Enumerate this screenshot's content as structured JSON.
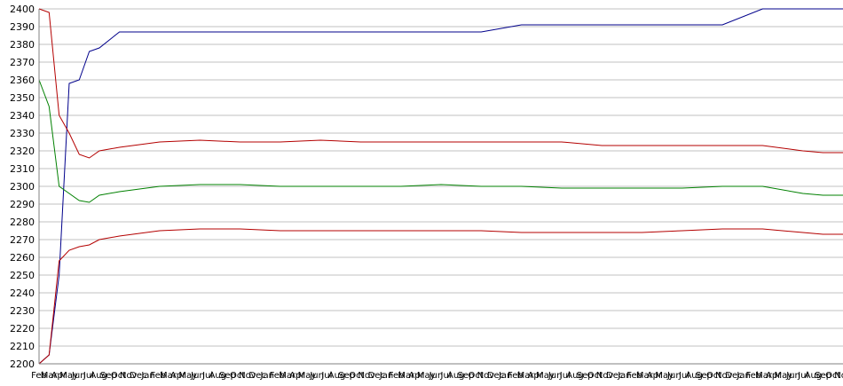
{
  "chart_data": {
    "type": "line",
    "title": "",
    "xlabel": "",
    "ylabel": "",
    "ylim": [
      2200,
      2400
    ],
    "y_ticks": [
      2200,
      2210,
      2220,
      2230,
      2240,
      2250,
      2260,
      2270,
      2280,
      2290,
      2300,
      2310,
      2320,
      2330,
      2340,
      2350,
      2360,
      2370,
      2380,
      2390,
      2400
    ],
    "grid": true,
    "legend": "none",
    "x_tick_labels": [
      "Feb",
      "Mar",
      "Apr",
      "May",
      "Jun",
      "Jul",
      "Aug",
      "Sep",
      "Oct",
      "Nov",
      "Dec",
      "Jan",
      "Feb",
      "Mar",
      "Apr",
      "May",
      "Jun",
      "Jul",
      "Aug",
      "Sep",
      "Oct",
      "Nov",
      "Dec",
      "Jan",
      "Feb",
      "Mar",
      "Apr",
      "May",
      "Jun",
      "Jul",
      "Aug",
      "Sep",
      "Oct",
      "Nov",
      "Dec",
      "Jan",
      "Feb",
      "Mar",
      "Apr",
      "May",
      "Jun",
      "Jul",
      "Aug",
      "Sep",
      "Oct",
      "Nov",
      "Dec",
      "Jan",
      "Feb",
      "Mar",
      "Apr",
      "May",
      "Jun",
      "Jul",
      "Aug",
      "Sep",
      "Oct",
      "Nov",
      "Dec",
      "Jan",
      "Feb",
      "Mar",
      "Apr",
      "May",
      "Jun",
      "Jul",
      "Aug",
      "Sep",
      "Oct",
      "Nov",
      "Dec",
      "Jan",
      "Feb",
      "Mar",
      "Apr",
      "May",
      "Jun",
      "Jul",
      "Aug",
      "Sep",
      "Oct",
      "Nov"
    ],
    "x_month_index": [
      0,
      1,
      2,
      3,
      4,
      5,
      6,
      8,
      12,
      16,
      20,
      24,
      28,
      32,
      36,
      40,
      44,
      48,
      52,
      56,
      60,
      64,
      68,
      72,
      76,
      78,
      80
    ],
    "series": [
      {
        "color": "#00008b",
        "values": [
          2200,
          2205,
          2250,
          2358,
          2360,
          2376,
          2378,
          2387,
          2387,
          2387,
          2387,
          2387,
          2387,
          2387,
          2387,
          2387,
          2387,
          2391,
          2391,
          2391,
          2391,
          2391,
          2391,
          2400,
          2400,
          2400,
          2400
        ]
      },
      {
        "color": "#b40000",
        "values": [
          2400,
          2398,
          2340,
          2330,
          2318,
          2316,
          2320,
          2322,
          2325,
          2326,
          2325,
          2325,
          2326,
          2325,
          2325,
          2325,
          2325,
          2325,
          2325,
          2323,
          2323,
          2323,
          2323,
          2323,
          2320,
          2319,
          2319
        ]
      },
      {
        "color": "#008000",
        "values": [
          2360,
          2345,
          2300,
          2296,
          2292,
          2291,
          2295,
          2297,
          2300,
          2301,
          2301,
          2300,
          2300,
          2300,
          2300,
          2301,
          2300,
          2300,
          2299,
          2299,
          2299,
          2299,
          2300,
          2300,
          2296,
          2295,
          2295
        ]
      },
      {
        "color": "#b40000",
        "values": [
          2200,
          2205,
          2258,
          2264,
          2266,
          2267,
          2270,
          2272,
          2275,
          2276,
          2276,
          2275,
          2275,
          2275,
          2275,
          2275,
          2275,
          2274,
          2274,
          2274,
          2274,
          2275,
          2276,
          2276,
          2274,
          2273,
          2273
        ]
      }
    ]
  }
}
